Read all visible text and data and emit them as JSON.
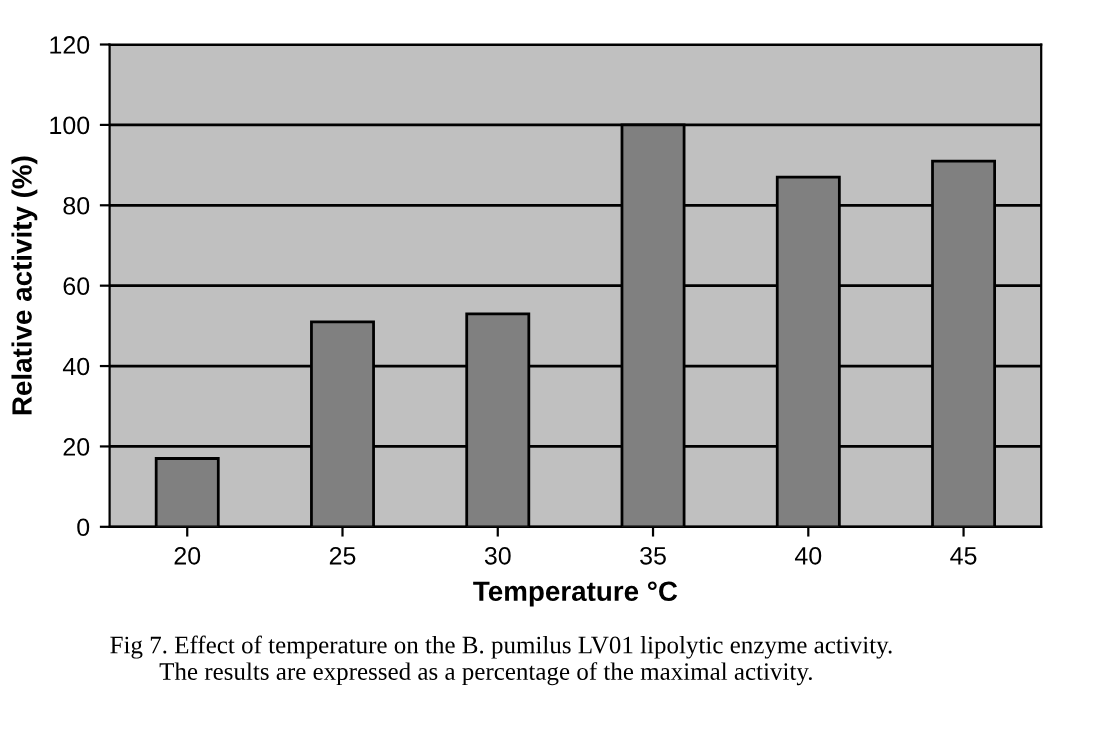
{
  "chart_data": {
    "type": "bar",
    "xlabel": "Temperature °C",
    "ylabel": "Relative activity (%)",
    "categories": [
      "20",
      "25",
      "30",
      "35",
      "40",
      "45"
    ],
    "values": [
      17,
      51,
      53,
      100,
      87,
      91
    ],
    "color": "#808080",
    "ylim": [
      0,
      120
    ],
    "yticks": [
      0,
      20,
      40,
      60,
      80,
      100,
      120
    ],
    "grid": "y",
    "annotations": [
      "Fig 7. Effect of temperature on the B. pumilus LV01 lipolytic enzyme activity.\n        The results are expressed as a percentage of the maximal activity."
    ]
  }
}
